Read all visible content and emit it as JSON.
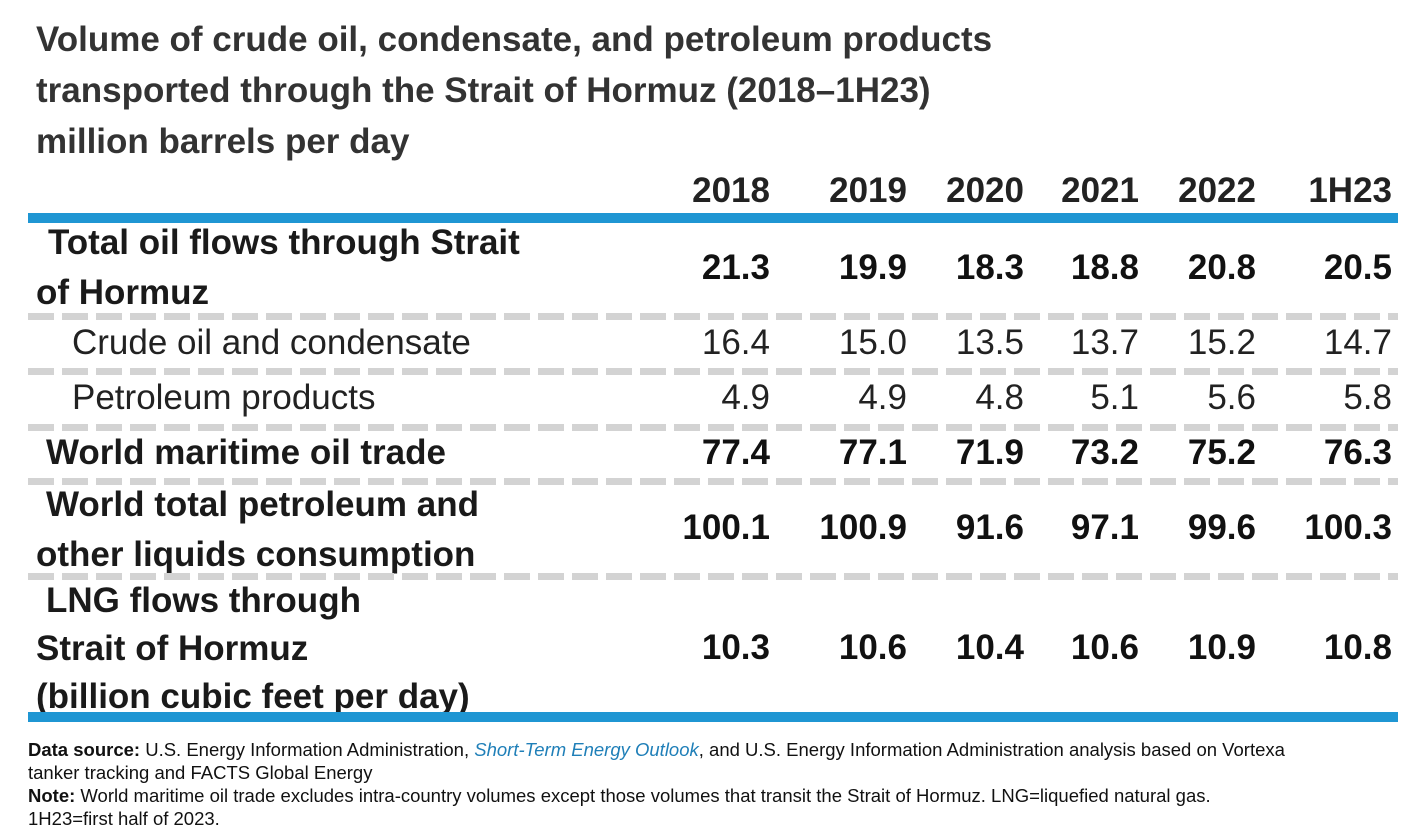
{
  "title": {
    "line1": "Volume of crude oil, condensate, and petroleum products",
    "line2": "transported through the Strait of Hormuz (2018–1H23)",
    "unit": "million barrels per day"
  },
  "chart_data": {
    "type": "table",
    "columns": [
      "2018",
      "2019",
      "2020",
      "2021",
      "2022",
      "1H23"
    ],
    "rows": [
      {
        "label_lines": [
          "Total oil flows through Strait",
          "of Hormuz"
        ],
        "values": [
          "21.3",
          "19.9",
          "18.3",
          "18.8",
          "20.8",
          "20.5"
        ],
        "emphasis": "bold"
      },
      {
        "label_lines": [
          "Crude oil and condensate"
        ],
        "values": [
          "16.4",
          "15.0",
          "13.5",
          "13.7",
          "15.2",
          "14.7"
        ],
        "emphasis": "normal"
      },
      {
        "label_lines": [
          "Petroleum products"
        ],
        "values": [
          "4.9",
          "4.9",
          "4.8",
          "5.1",
          "5.6",
          "5.8"
        ],
        "emphasis": "normal"
      },
      {
        "label_lines": [
          "World maritime oil trade"
        ],
        "values": [
          "77.4",
          "77.1",
          "71.9",
          "73.2",
          "75.2",
          "76.3"
        ],
        "emphasis": "bold"
      },
      {
        "label_lines": [
          "World total petroleum and",
          "other liquids consumption"
        ],
        "values": [
          "100.1",
          "100.9",
          "91.6",
          "97.1",
          "99.6",
          "100.3"
        ],
        "emphasis": "bold"
      },
      {
        "label_lines": [
          "LNG flows through",
          "Strait of Hormuz",
          "(billion cubic feet per day)"
        ],
        "values": [
          "10.3",
          "10.6",
          "10.4",
          "10.6",
          "10.9",
          "10.8"
        ],
        "emphasis": "bold"
      }
    ]
  },
  "footnotes": {
    "source_label": "Data source:",
    "source_text_1": " U.S. Energy Information Administration, ",
    "source_link": "Short-Term Energy Outlook",
    "source_text_2": ", and U.S. Energy Information Administration analysis based on Vortexa",
    "source_text_3": "tanker tracking and FACTS Global Energy",
    "note_label": "Note:",
    "note_text_1": " World maritime oil trade excludes intra-country volumes except those volumes that transit the Strait of Hormuz. LNG=liquefied natural gas.",
    "note_text_2": "1H23=first half of 2023."
  },
  "colors": {
    "accent_rule": "#1f96d3",
    "separator": "#d3d3d3",
    "link": "#1f7fb8"
  }
}
